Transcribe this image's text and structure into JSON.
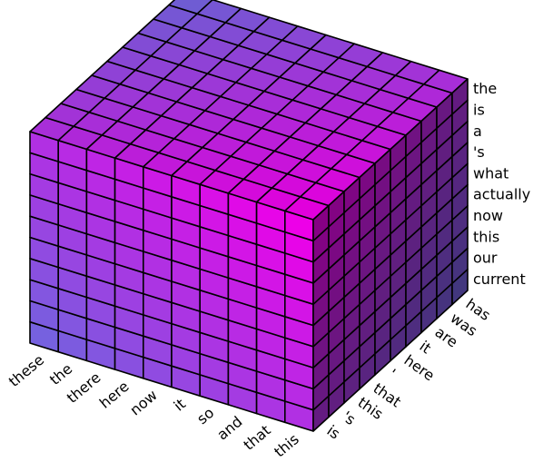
{
  "chart_data": {
    "type": "voxel",
    "xcategories": [
      "these",
      "the",
      "there",
      "here",
      "now",
      "it",
      "so",
      "and",
      "that",
      "this"
    ],
    "ycategories": [
      "is",
      "'s",
      "this",
      "that",
      "'",
      "here",
      "it",
      "are",
      "was",
      "has"
    ],
    "zcategories": [
      "current",
      "our",
      "this",
      "now",
      "actually",
      "what",
      "'s",
      "a",
      "is",
      "the"
    ]
  }
}
